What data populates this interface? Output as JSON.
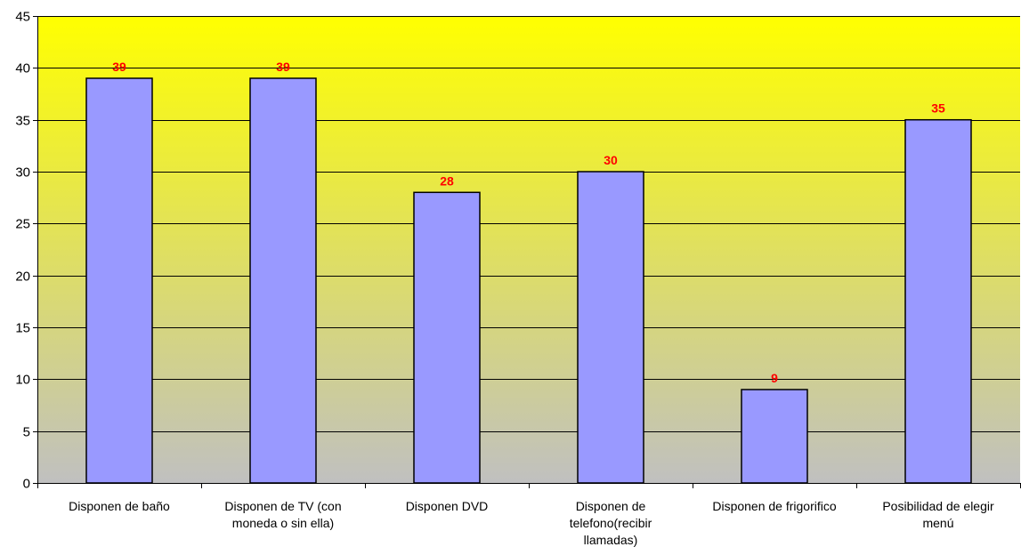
{
  "chart_data": {
    "type": "bar",
    "title": "",
    "xlabel": "",
    "ylabel": "",
    "categories": [
      "Disponen de baño",
      "Disponen de TV (con moneda o sin ella)",
      "Disponen DVD",
      "Disponen de telefono(recibir llamadas)",
      "Disponen de frigorifico",
      "Posibilidad de elegir menú"
    ],
    "category_lines": [
      [
        "Disponen de baño"
      ],
      [
        "Disponen de TV (con",
        "moneda o sin ella)"
      ],
      [
        "Disponen DVD"
      ],
      [
        "Disponen de",
        "telefono(recibir",
        "llamadas)"
      ],
      [
        "Disponen de frigorifico"
      ],
      [
        "Posibilidad de elegir",
        "menú"
      ]
    ],
    "values": [
      39,
      39,
      28,
      30,
      9,
      35
    ],
    "ylim": [
      0,
      45
    ],
    "yticks": [
      0,
      5,
      10,
      15,
      20,
      25,
      30,
      35,
      40,
      45
    ],
    "grid": true,
    "legend": "none",
    "colors": {
      "bar_fill": "#9999FF",
      "bar_stroke": "#000000",
      "data_label": "#FF0000",
      "plot_bg_top": "#FFFF00",
      "plot_bg_bottom": "#C0C0C0",
      "grid": "#000000"
    }
  }
}
